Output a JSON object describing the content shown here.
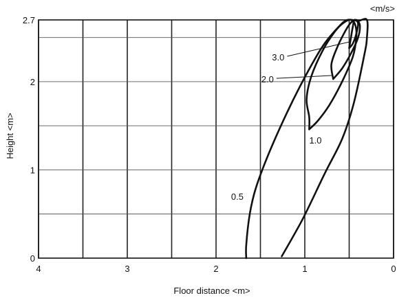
{
  "chart_data": {
    "type": "line",
    "title": "",
    "xlabel": "Floor distance <m>",
    "ylabel": "Height <m>",
    "unit_label": "<m/s>",
    "x_reversed": true,
    "xlim": [
      0,
      4
    ],
    "ylim": [
      0,
      2.7
    ],
    "x_ticks": [
      4,
      3,
      2,
      1,
      0
    ],
    "x_tick_labels": [
      "4",
      "3",
      "2",
      "1",
      "0"
    ],
    "y_ticks": [
      0,
      1,
      2,
      2.7
    ],
    "y_tick_labels": [
      "0",
      "1",
      "2",
      "2.7"
    ],
    "grid_x": [
      4,
      3.5,
      3,
      2.5,
      2,
      1.5,
      1,
      0.5,
      0
    ],
    "grid_y": [
      0,
      0.5,
      1,
      1.5,
      2,
      2.5,
      2.7
    ],
    "grid": true,
    "line_color": "#111111",
    "series": [
      {
        "name": "0.5",
        "points": [
          [
            1.66,
            0.0
          ],
          [
            1.66,
            0.15
          ],
          [
            1.62,
            0.5
          ],
          [
            1.55,
            0.8
          ],
          [
            1.4,
            1.2
          ],
          [
            1.2,
            1.65
          ],
          [
            1.0,
            2.05
          ],
          [
            0.8,
            2.4
          ],
          [
            0.62,
            2.62
          ],
          [
            0.52,
            2.7
          ],
          [
            0.4,
            2.69
          ],
          [
            0.3,
            2.7
          ],
          [
            0.3,
            2.5
          ],
          [
            0.33,
            2.3
          ],
          [
            0.45,
            1.75
          ],
          [
            0.58,
            1.35
          ],
          [
            0.78,
            0.95
          ],
          [
            1.02,
            0.45
          ],
          [
            1.26,
            0.02
          ]
        ]
      },
      {
        "name": "1.0",
        "points": [
          [
            0.95,
            1.46
          ],
          [
            0.95,
            1.6
          ],
          [
            0.98,
            1.8
          ],
          [
            0.93,
            2.05
          ],
          [
            0.8,
            2.35
          ],
          [
            0.66,
            2.57
          ],
          [
            0.56,
            2.67
          ],
          [
            0.48,
            2.7
          ],
          [
            0.43,
            2.64
          ],
          [
            0.42,
            2.5
          ],
          [
            0.46,
            2.28
          ],
          [
            0.58,
            2.0
          ],
          [
            0.72,
            1.74
          ],
          [
            0.85,
            1.56
          ],
          [
            0.95,
            1.46
          ]
        ]
      },
      {
        "name": "2.0",
        "points": [
          [
            0.68,
            2.03
          ],
          [
            0.7,
            2.2
          ],
          [
            0.63,
            2.4
          ],
          [
            0.54,
            2.58
          ],
          [
            0.48,
            2.67
          ],
          [
            0.42,
            2.7
          ],
          [
            0.38,
            2.64
          ],
          [
            0.4,
            2.5
          ],
          [
            0.48,
            2.32
          ],
          [
            0.58,
            2.15
          ],
          [
            0.68,
            2.03
          ]
        ]
      },
      {
        "name": "3.0",
        "points": [
          [
            0.5,
            2.38
          ],
          [
            0.48,
            2.5
          ],
          [
            0.46,
            2.62
          ],
          [
            0.44,
            2.7
          ],
          [
            0.4,
            2.66
          ],
          [
            0.42,
            2.54
          ],
          [
            0.46,
            2.43
          ],
          [
            0.5,
            2.38
          ]
        ]
      }
    ],
    "annotations": [
      {
        "text": "0.5",
        "x": 1.76,
        "y": 0.7
      },
      {
        "text": "1.0",
        "x": 0.88,
        "y": 1.34
      },
      {
        "text": "2.0",
        "x": 1.42,
        "y": 2.03,
        "leader_to": [
          0.7,
          2.07
        ]
      },
      {
        "text": "3.0",
        "x": 1.3,
        "y": 2.28,
        "leader_to": [
          0.5,
          2.45
        ]
      }
    ]
  }
}
